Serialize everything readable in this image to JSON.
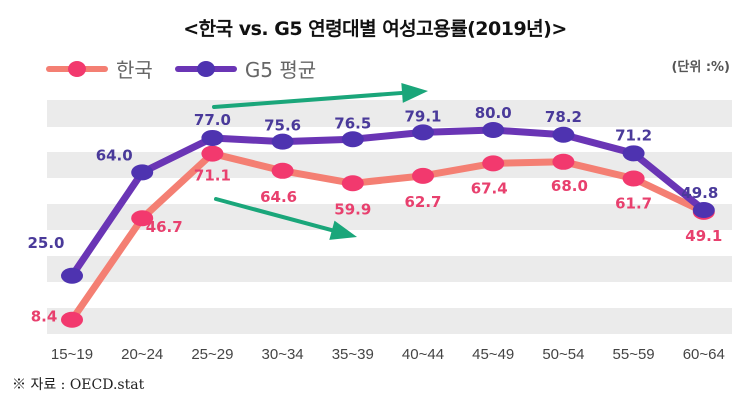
{
  "title": "<한국 vs. G5 연령대별 여성고용률(2019년)>",
  "unit_label": "(단위 :%)",
  "source_note": "※ 자료 : OECD.stat",
  "colors": {
    "korea_line": "#f47f73",
    "korea_marker": "#f2396e",
    "korea_label": "#e8406e",
    "g5_line": "#6a35b5",
    "g5_marker": "#4e33b0",
    "g5_label": "#4a3a9a",
    "band": "#ebebeb",
    "arrow": "#1aa67a"
  },
  "chart_data": {
    "type": "line",
    "title": "<한국 vs. G5 연령대별 여성고용률(2019년)>",
    "xlabel": "",
    "ylabel": "",
    "unit": "%",
    "categories": [
      "15~19",
      "20~24",
      "25~29",
      "30~34",
      "35~39",
      "40~44",
      "45~49",
      "50~54",
      "55~59",
      "60~64"
    ],
    "series": [
      {
        "name": "한국",
        "values": [
          8.4,
          46.7,
          71.1,
          64.6,
          59.9,
          62.7,
          67.4,
          68.0,
          61.7,
          49.1
        ]
      },
      {
        "name": "G5 평균",
        "values": [
          25.0,
          64.0,
          77.0,
          75.6,
          76.5,
          79.1,
          80.0,
          78.2,
          71.2,
          49.8
        ]
      }
    ],
    "data_labels": {
      "한국": [
        "8.4",
        "46.7",
        "71.1",
        "64.6",
        "59.9",
        "62.7",
        "67.4",
        "68.0",
        "61.7",
        "49.1"
      ],
      "G5 평균": [
        "25.0",
        "64.0",
        "77.0",
        "75.6",
        "76.5",
        "79.1",
        "80.0",
        "78.2",
        "71.2",
        "49.8"
      ]
    },
    "legend": {
      "position": "top-left",
      "entries": [
        "한국",
        "G5 평균"
      ]
    },
    "annotations": [
      {
        "type": "arrow",
        "direction": "up-right",
        "description": "G5 rising trend 25~29 to 40~44"
      },
      {
        "type": "arrow",
        "direction": "down-right",
        "description": "Korea falling trend after 25~29"
      }
    ],
    "grid": "alternating horizontal bands",
    "ylim": [
      0,
      90
    ]
  }
}
